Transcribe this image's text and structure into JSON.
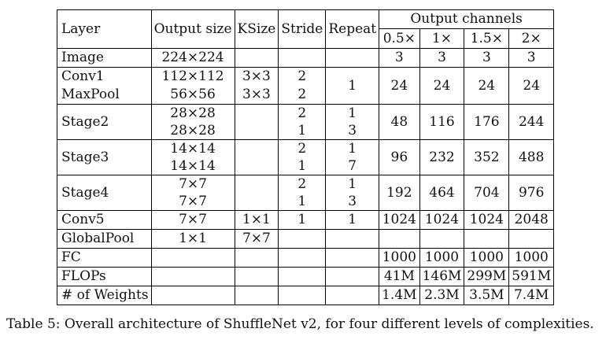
{
  "table": {
    "headers": {
      "layer": "Layer",
      "output_size": "Output size",
      "ksize": "KSize",
      "stride": "Stride",
      "repeat": "Repeat",
      "output_channels": "Output channels",
      "levels": [
        "0.5×",
        "1×",
        "1.5×",
        "2×"
      ]
    },
    "rows": {
      "image": {
        "layer": "Image",
        "size": "224×224",
        "ch": [
          "3",
          "3",
          "3",
          "3"
        ]
      },
      "conv1": {
        "layer": "Conv1",
        "size": "112×112",
        "k": "3×3",
        "s": "2"
      },
      "maxpool": {
        "layer": "MaxPool",
        "size": "56×56",
        "k": "3×3",
        "s": "2"
      },
      "conv1_group": {
        "repeat": "1",
        "ch": [
          "24",
          "24",
          "24",
          "24"
        ]
      },
      "stage2": {
        "layer": "Stage2",
        "sizes": [
          "28×28",
          "28×28"
        ],
        "strides": [
          "2",
          "1"
        ],
        "repeats": [
          "1",
          "3"
        ],
        "ch": [
          "48",
          "116",
          "176",
          "244"
        ]
      },
      "stage3": {
        "layer": "Stage3",
        "sizes": [
          "14×14",
          "14×14"
        ],
        "strides": [
          "2",
          "1"
        ],
        "repeats": [
          "1",
          "7"
        ],
        "ch": [
          "96",
          "232",
          "352",
          "488"
        ]
      },
      "stage4": {
        "layer": "Stage4",
        "sizes": [
          "7×7",
          "7×7"
        ],
        "strides": [
          "2",
          "1"
        ],
        "repeats": [
          "1",
          "3"
        ],
        "ch": [
          "192",
          "464",
          "704",
          "976"
        ]
      },
      "conv5": {
        "layer": "Conv5",
        "size": "7×7",
        "k": "1×1",
        "s": "1",
        "r": "1",
        "ch": [
          "1024",
          "1024",
          "1024",
          "2048"
        ]
      },
      "globalpool": {
        "layer": "GlobalPool",
        "size": "1×1",
        "k": "7×7"
      },
      "fc": {
        "layer": "FC",
        "ch": [
          "1000",
          "1000",
          "1000",
          "1000"
        ]
      },
      "flops": {
        "layer": "FLOPs",
        "ch": [
          "41M",
          "146M",
          "299M",
          "591M"
        ]
      },
      "weights": {
        "layer": "# of Weights",
        "ch": [
          "1.4M",
          "2.3M",
          "3.5M",
          "7.4M"
        ]
      }
    }
  },
  "caption": "Table 5: Overall architecture of ShuffleNet v2, for four different levels of complexities."
}
